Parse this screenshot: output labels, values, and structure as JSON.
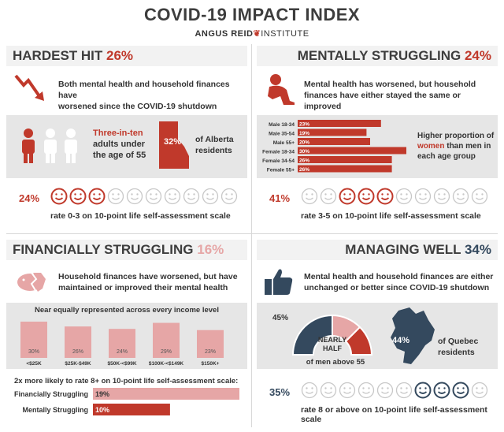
{
  "header": {
    "title": "COVID-19 IMPACT INDEX",
    "brand": "ANGUS REID",
    "brand_suffix": "INSTITUTE"
  },
  "colors": {
    "red": "#c0392b",
    "pink": "#e6a6a6",
    "navy": "#34495e",
    "gray": "#bdbdbd"
  },
  "panels": {
    "hardest_hit": {
      "title": "HARDEST HIT",
      "pct": "26%",
      "desc": [
        "Both mental health and household finances have",
        "worsened since the COVID-19 shutdown"
      ],
      "stat_emph": "Three-in-ten",
      "stat_lines": [
        "adults under",
        "the age of 55"
      ],
      "map_pct": "32%",
      "map_label": [
        "of Alberta",
        "residents"
      ],
      "scale_pct": "24%",
      "scale_text": "rate 0-3 on 10-point life self-assessment scale"
    },
    "mentally_struggling": {
      "title": "MENTALLY STRUGGLING",
      "pct": "24%",
      "desc": [
        "Mental health has worsened, but household",
        "finances have either stayed the same or improved"
      ],
      "note_pre": "Higher proportion of",
      "note_emph": "women",
      "note_post": "than men in",
      "note_end": "each age group",
      "scale_pct": "41%",
      "scale_text": "rate 3-5 on 10-point life self-assessment scale"
    },
    "financially_struggling": {
      "title": "FINANCIALLY STRUGGLING",
      "pct": "16%",
      "desc": [
        "Household finances have worsened, but have",
        "maintained or improved their mental health"
      ],
      "income_title": "Near equally represented across every income level",
      "rate_title": "2x more likely to rate 8+ on 10-point life self-assessment scale:"
    },
    "managing_well": {
      "title": "MANAGING WELL",
      "pct": "34%",
      "desc": [
        "Mental health and household finances are either",
        "unchanged or better since COVID-19 shutdown"
      ],
      "gauge_pct": "45%",
      "gauge_lines": [
        "NEARLY",
        "HALF"
      ],
      "gauge_sub": "of men above 55",
      "map_pct": "44%",
      "map_label": [
        "of Quebec",
        "residents"
      ],
      "scale_pct": "35%",
      "scale_text": "rate 8 or above on 10-point life self-assessment scale"
    }
  },
  "chart_data": [
    {
      "type": "bar",
      "orientation": "horizontal",
      "categories": [
        "Male 18-34",
        "Male 35-54",
        "Male 55+",
        "Female 18-34",
        "Female 34-54",
        "Female 55+"
      ],
      "values": [
        23,
        19,
        20,
        30,
        26,
        26
      ],
      "labels": [
        "23%",
        "19%",
        "20%",
        "30%",
        "26%",
        "26%"
      ],
      "xlim": [
        0,
        30
      ]
    },
    {
      "type": "bar",
      "categories": [
        "<$25K",
        "$25K-$49K",
        "$50K-<$99K",
        "$100K-<$149K",
        "$150K+"
      ],
      "values": [
        30,
        26,
        24,
        29,
        23
      ],
      "labels": [
        "30%",
        "26%",
        "24%",
        "29%",
        "23%"
      ],
      "ylim": [
        0,
        30
      ]
    },
    {
      "type": "bar",
      "orientation": "horizontal",
      "categories": [
        "Financially Struggling",
        "Mentally Struggling"
      ],
      "values": [
        19,
        10
      ],
      "labels": [
        "19%",
        "10%"
      ],
      "xlim": [
        0,
        19
      ]
    }
  ]
}
